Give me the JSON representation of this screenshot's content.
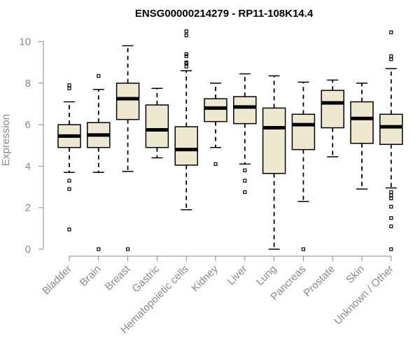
{
  "chart_data": {
    "type": "box",
    "title": "ENSG00000214279 - RP11-108K14.4",
    "ylabel": "Expression",
    "xlabel": "",
    "ylim": [
      0,
      10.5
    ],
    "yticks": [
      0,
      2,
      4,
      6,
      8,
      10
    ],
    "categories": [
      "Bladder",
      "Brain",
      "Breast",
      "Gastric",
      "Hematopoietic cells",
      "Kidney",
      "Liver",
      "Lung",
      "Pancreas",
      "Prostate",
      "Skin",
      "Unknown / Other"
    ],
    "boxes": [
      {
        "whisker_low": 3.7,
        "q1": 4.9,
        "median": 5.45,
        "q3": 6.0,
        "whisker_high": 7.1,
        "outliers": [
          0.95,
          2.9,
          3.3,
          7.75,
          7.9
        ]
      },
      {
        "whisker_low": 3.7,
        "q1": 4.9,
        "median": 5.5,
        "q3": 6.1,
        "whisker_high": 7.7,
        "outliers": [
          0.0,
          8.35
        ]
      },
      {
        "whisker_low": 3.75,
        "q1": 6.25,
        "median": 7.25,
        "q3": 8.0,
        "whisker_high": 9.8,
        "outliers": [
          0.0
        ]
      },
      {
        "whisker_low": 4.4,
        "q1": 4.9,
        "median": 5.75,
        "q3": 6.95,
        "whisker_high": 7.75,
        "outliers": []
      },
      {
        "whisker_low": 1.9,
        "q1": 4.05,
        "median": 4.8,
        "q3": 5.9,
        "whisker_high": 8.6,
        "outliers": [
          8.8,
          8.95,
          9.0,
          9.3,
          9.4,
          10.3,
          10.5
        ]
      },
      {
        "whisker_low": 4.9,
        "q1": 6.15,
        "median": 6.8,
        "q3": 7.25,
        "whisker_high": 8.0,
        "outliers": [
          4.1
        ]
      },
      {
        "whisker_low": 4.1,
        "q1": 6.05,
        "median": 6.85,
        "q3": 7.35,
        "whisker_high": 8.45,
        "outliers": [
          2.75,
          3.3,
          3.8
        ]
      },
      {
        "whisker_low": 0.0,
        "q1": 3.65,
        "median": 5.85,
        "q3": 6.8,
        "whisker_high": 8.35,
        "outliers": []
      },
      {
        "whisker_low": 2.3,
        "q1": 4.8,
        "median": 6.0,
        "q3": 6.5,
        "whisker_high": 8.05,
        "outliers": [
          0.0
        ]
      },
      {
        "whisker_low": 4.45,
        "q1": 5.85,
        "median": 7.05,
        "q3": 7.65,
        "whisker_high": 8.15,
        "outliers": []
      },
      {
        "whisker_low": 2.9,
        "q1": 5.1,
        "median": 6.3,
        "q3": 7.1,
        "whisker_high": 8.0,
        "outliers": []
      },
      {
        "whisker_low": 2.95,
        "q1": 5.05,
        "median": 5.9,
        "q3": 6.5,
        "whisker_high": 8.7,
        "outliers": [
          0.0,
          1.1,
          1.5,
          2.05,
          2.45,
          2.6,
          2.75,
          9.15,
          9.3,
          10.45
        ]
      }
    ],
    "colors": {
      "box_fill": "#efe8d1",
      "axis": "#8a8a8a"
    }
  }
}
